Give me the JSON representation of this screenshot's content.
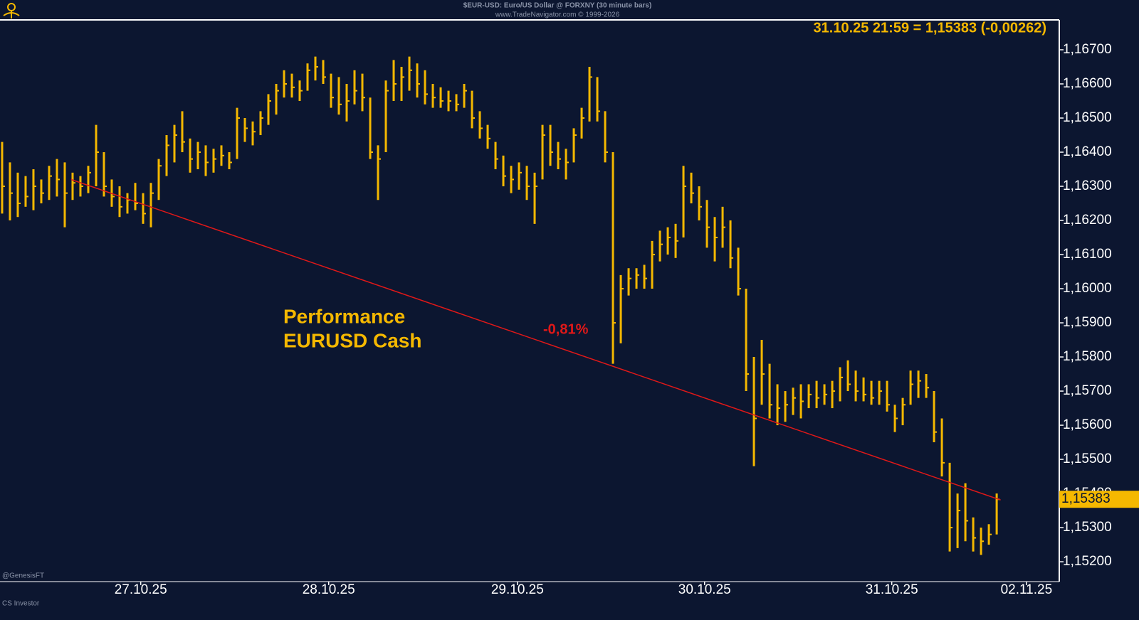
{
  "chart_data": {
    "type": "ohlc",
    "title": "$EUR-USD: Euro/US Dollar @ FORXNY  (30 minute bars)",
    "subtitle": "www.TradeNavigator.com © 1999-2026",
    "header_label": "31.10.25 21:59 = 1,15383 (-0,00262)",
    "annotation_title": "Performance",
    "annotation_subtitle": "EURUSD Cash",
    "trend_label": "-0,81%",
    "watermark": "@GenesisFT",
    "footer": "CS Investor",
    "color": "#f5b800",
    "high": [
      1.1643,
      1.1637,
      1.1634,
      1.1633,
      1.1635,
      1.1632,
      1.1636,
      1.1638,
      1.1637,
      1.1634,
      1.1633,
      1.1636,
      1.1648,
      1.164,
      1.1632,
      1.163,
      1.1628,
      1.1631,
      1.1628,
      1.1631,
      1.1638,
      1.1645,
      1.1648,
      1.1652,
      1.1644,
      1.1643,
      1.1642,
      1.1641,
      1.1642,
      1.164,
      1.1653,
      1.165,
      1.1649,
      1.1652,
      1.1657,
      1.166,
      1.1664,
      1.1663,
      1.1661,
      1.1666,
      1.1668,
      1.1667,
      1.1663,
      1.1662,
      1.166,
      1.1664,
      1.1663,
      1.1656,
      1.1642,
      1.1661,
      1.1667,
      1.1665,
      1.1668,
      1.1666,
      1.1664,
      1.166,
      1.1659,
      1.1658,
      1.1657,
      1.166,
      1.1658,
      1.1652,
      1.1648,
      1.1643,
      1.1639,
      1.1636,
      1.1637,
      1.1636,
      1.1634,
      1.1648,
      1.1648,
      1.1643,
      1.1641,
      1.1647,
      1.1653,
      1.1665,
      1.1662,
      1.1652,
      1.164,
      1.1604,
      1.1606,
      1.1606,
      1.1607,
      1.1614,
      1.1617,
      1.1618,
      1.1619,
      1.1636,
      1.1634,
      1.163,
      1.1626,
      1.1621,
      1.1624,
      1.162,
      1.1612,
      1.16,
      1.158,
      1.1585,
      1.1578,
      1.1572,
      1.157,
      1.1571,
      1.1572,
      1.1572,
      1.1573,
      1.1572,
      1.1573,
      1.1577,
      1.1579,
      1.1576,
      1.1574,
      1.1573,
      1.1573,
      1.1573,
      1.1566,
      1.1568,
      1.1576,
      1.1576,
      1.1575,
      1.157,
      1.1562,
      1.1549,
      1.154,
      1.1543,
      1.1533,
      1.153,
      1.1531,
      1.154
    ],
    "low": [
      1.1622,
      1.162,
      1.1621,
      1.1624,
      1.1623,
      1.1625,
      1.1626,
      1.1627,
      1.1618,
      1.1626,
      1.1627,
      1.1628,
      1.163,
      1.1627,
      1.1624,
      1.1621,
      1.1622,
      1.1623,
      1.1619,
      1.1618,
      1.1626,
      1.1633,
      1.1637,
      1.164,
      1.1634,
      1.1635,
      1.1633,
      1.1634,
      1.1636,
      1.1635,
      1.1638,
      1.1643,
      1.1642,
      1.1645,
      1.1648,
      1.1651,
      1.1656,
      1.1656,
      1.1655,
      1.1658,
      1.1661,
      1.166,
      1.1653,
      1.1651,
      1.1649,
      1.1654,
      1.1652,
      1.1638,
      1.1626,
      1.164,
      1.1655,
      1.1655,
      1.1658,
      1.1656,
      1.1654,
      1.1653,
      1.1653,
      1.1652,
      1.1652,
      1.1653,
      1.1647,
      1.1644,
      1.1641,
      1.1635,
      1.163,
      1.1628,
      1.1629,
      1.1626,
      1.1619,
      1.1632,
      1.1636,
      1.1635,
      1.1632,
      1.1637,
      1.1644,
      1.1649,
      1.1649,
      1.1637,
      1.1578,
      1.1584,
      1.1598,
      1.16,
      1.16,
      1.16,
      1.1608,
      1.161,
      1.1609,
      1.1615,
      1.1625,
      1.162,
      1.1612,
      1.1608,
      1.1612,
      1.1606,
      1.1598,
      1.157,
      1.1548,
      1.1566,
      1.1562,
      1.156,
      1.1561,
      1.1563,
      1.1562,
      1.1565,
      1.1565,
      1.1566,
      1.1565,
      1.1567,
      1.157,
      1.1567,
      1.1567,
      1.1566,
      1.1566,
      1.1564,
      1.1558,
      1.156,
      1.1566,
      1.1568,
      1.1568,
      1.1555,
      1.1545,
      1.1523,
      1.1524,
      1.1526,
      1.1523,
      1.1522,
      1.1525,
      1.1528
    ],
    "close": [
      1.163,
      1.1628,
      1.1625,
      1.1627,
      1.163,
      1.1628,
      1.1633,
      1.1632,
      1.1628,
      1.1631,
      1.163,
      1.1634,
      1.164,
      1.163,
      1.1627,
      1.1624,
      1.1626,
      1.1625,
      1.1622,
      1.1628,
      1.1636,
      1.1642,
      1.1645,
      1.1643,
      1.1638,
      1.164,
      1.1637,
      1.1638,
      1.1639,
      1.1637,
      1.165,
      1.1647,
      1.1646,
      1.165,
      1.1655,
      1.1658,
      1.166,
      1.1659,
      1.1658,
      1.1664,
      1.1665,
      1.1662,
      1.1656,
      1.1654,
      1.1655,
      1.1658,
      1.1656,
      1.164,
      1.1638,
      1.1658,
      1.166,
      1.1662,
      1.1664,
      1.166,
      1.1657,
      1.1656,
      1.1655,
      1.1655,
      1.1654,
      1.1658,
      1.165,
      1.1647,
      1.1644,
      1.1638,
      1.1633,
      1.1632,
      1.1634,
      1.163,
      1.163,
      1.1645,
      1.164,
      1.1638,
      1.1637,
      1.1645,
      1.165,
      1.1662,
      1.1652,
      1.164,
      1.159,
      1.16,
      1.1603,
      1.1604,
      1.1603,
      1.161,
      1.1613,
      1.1615,
      1.1614,
      1.163,
      1.1628,
      1.1624,
      1.1618,
      1.1615,
      1.1618,
      1.1609,
      1.16,
      1.1575,
      1.1562,
      1.1575,
      1.1566,
      1.1565,
      1.1566,
      1.1568,
      1.1567,
      1.1569,
      1.1568,
      1.1569,
      1.157,
      1.1574,
      1.1572,
      1.157,
      1.1569,
      1.1568,
      1.157,
      1.1566,
      1.1562,
      1.1566,
      1.1572,
      1.1573,
      1.1571,
      1.1558,
      1.1549,
      1.153,
      1.1535,
      1.1532,
      1.1527,
      1.1526,
      1.1528,
      1.15383
    ],
    "trendline": {
      "x": [
        8.8,
        127.5
      ],
      "y": [
        1.1632,
        1.15381
      ],
      "color": "#e01818"
    },
    "last_price": {
      "value": 1.15383,
      "label": "1,15383"
    },
    "xlim": [
      -0.27,
      134.9
    ],
    "xticks": [
      {
        "value": 17.7,
        "label": "27.10.25"
      },
      {
        "value": 41.7,
        "label": "28.10.25"
      },
      {
        "value": 65.8,
        "label": "29.10.25"
      },
      {
        "value": 89.7,
        "label": "30.10.25"
      },
      {
        "value": 113.6,
        "label": "31.10.25"
      },
      {
        "value": 130.8,
        "label": "02.11.25"
      }
    ],
    "ylim": [
      1.15146,
      1.167875
    ],
    "yticks": [
      {
        "value": 1.167,
        "label": "1,16700"
      },
      {
        "value": 1.166,
        "label": "1,16600"
      },
      {
        "value": 1.165,
        "label": "1,16500"
      },
      {
        "value": 1.164,
        "label": "1,16400"
      },
      {
        "value": 1.163,
        "label": "1,16300"
      },
      {
        "value": 1.162,
        "label": "1,16200"
      },
      {
        "value": 1.161,
        "label": "1,16100"
      },
      {
        "value": 1.16,
        "label": "1,16000"
      },
      {
        "value": 1.159,
        "label": "1,15900"
      },
      {
        "value": 1.158,
        "label": "1,15800"
      },
      {
        "value": 1.157,
        "label": "1,15700"
      },
      {
        "value": 1.156,
        "label": "1,15600"
      },
      {
        "value": 1.155,
        "label": "1,15500"
      },
      {
        "value": 1.154,
        "label": "1,15400"
      },
      {
        "value": 1.153,
        "label": "1,15300"
      },
      {
        "value": 1.152,
        "label": "1,15200"
      }
    ]
  }
}
